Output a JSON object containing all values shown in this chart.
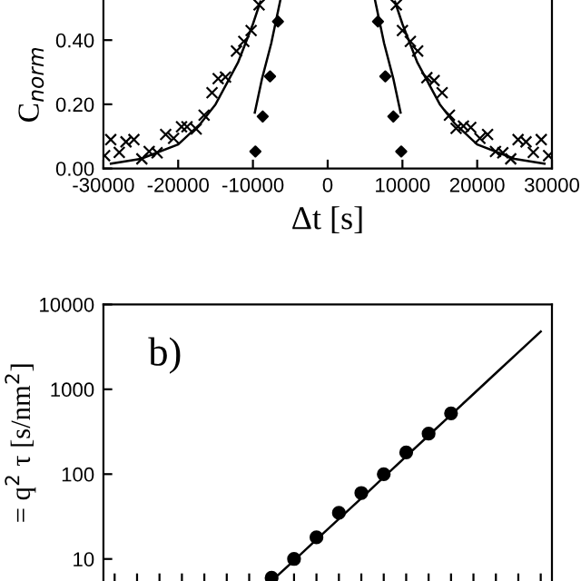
{
  "chart_data": [
    {
      "type": "scatter",
      "xlabel": "Δt [s]",
      "ylabel": "C$_{norm}$",
      "xlim": [
        -30000,
        30000
      ],
      "xticks": [
        -30000,
        -20000,
        -10000,
        0,
        10000,
        20000,
        30000
      ],
      "ylim": [
        0,
        0.525
      ],
      "yticks": [
        {
          "value": 0,
          "label": "0.00"
        },
        {
          "value": 0.2,
          "label": "0.20"
        },
        {
          "value": 0.4,
          "label": "0.40"
        }
      ],
      "grid": false,
      "legend": false,
      "series": [
        {
          "marker": "cross",
          "color": "#000000",
          "x": [
            -29840,
            -29020,
            -27880,
            -26980,
            -25920,
            -24860,
            -23880,
            -22820,
            -21670,
            -20610,
            -19550,
            -18820,
            -17590,
            -16530,
            -15470,
            -14650,
            -13670,
            -12200,
            -11220,
            -10240,
            -9180,
            9180,
            10000,
            11060,
            12040,
            13270,
            14240,
            15310,
            16290,
            17180,
            18160,
            19140,
            20370,
            21390,
            22450,
            23430,
            24490,
            25470,
            26530,
            27510,
            28570,
            29550
          ],
          "values": [
            0.04,
            0.09,
            0.05,
            0.083,
            0.09,
            0.03,
            0.053,
            0.049,
            0.106,
            0.094,
            0.13,
            0.13,
            0.123,
            0.166,
            0.236,
            0.28,
            0.285,
            0.366,
            0.396,
            0.43,
            0.51,
            0.51,
            0.43,
            0.396,
            0.366,
            0.283,
            0.274,
            0.236,
            0.166,
            0.125,
            0.132,
            0.128,
            0.094,
            0.106,
            0.053,
            0.049,
            0.03,
            0.09,
            0.083,
            0.05,
            0.09,
            0.04
          ]
        },
        {
          "marker": "diamond",
          "color": "#000000",
          "x": [
            -9670,
            -8690,
            -7710,
            -6650,
            6730,
            7710,
            8780,
            9840
          ],
          "values": [
            0.053,
            0.162,
            0.287,
            0.458,
            0.458,
            0.287,
            0.162,
            0.053
          ]
        },
        {
          "type": "line",
          "marker": "none",
          "color": "#000000",
          "x": [
            -29000,
            -25000,
            -20000,
            -17000,
            -15000,
            -12000,
            -10000,
            -9000
          ],
          "values": [
            0.015,
            0.03,
            0.075,
            0.14,
            0.2,
            0.33,
            0.45,
            0.52
          ]
        },
        {
          "type": "line",
          "marker": "none",
          "color": "#000000",
          "x": [
            9000,
            10000,
            12000,
            15000,
            17000,
            20000,
            25000,
            29000
          ],
          "values": [
            0.52,
            0.45,
            0.33,
            0.2,
            0.14,
            0.075,
            0.03,
            0.015
          ]
        },
        {
          "type": "line",
          "marker": "none",
          "color": "#000000",
          "x": [
            -9750,
            -8780,
            -7550,
            -6330
          ],
          "values": [
            0.174,
            0.28,
            0.39,
            0.525
          ]
        },
        {
          "type": "line",
          "marker": "none",
          "color": "#000000",
          "x": [
            6330,
            7550,
            8780,
            9750
          ],
          "values": [
            0.525,
            0.39,
            0.28,
            0.174
          ]
        }
      ]
    },
    {
      "type": "scatter",
      "ylabel": "= q$^{2}$ τ [s/nm$^{2}$]",
      "log": "y",
      "ylim": [
        5.5,
        10000
      ],
      "yticks": [
        10,
        100,
        1000,
        10000
      ],
      "tick_labels": "y",
      "grid": false,
      "legend": false,
      "annotations": [
        "b)"
      ],
      "categories": [
        null,
        null,
        null,
        null,
        null,
        null,
        null,
        null,
        null,
        null,
        null,
        null,
        null,
        null,
        null,
        null,
        null,
        null,
        null,
        null
      ],
      "series": [
        {
          "type": "line",
          "marker": "none",
          "color": "#000000",
          "values": [
            null,
            null,
            null,
            null,
            null,
            null,
            null,
            5.5,
            9.6,
            16.9,
            29.7,
            52,
            92,
            162,
            285,
            500,
            880,
            1550,
            2730,
            4800
          ]
        },
        {
          "marker": "circle",
          "color": "#000000",
          "values": [
            null,
            null,
            null,
            null,
            null,
            null,
            null,
            6,
            10,
            18,
            35,
            60,
            100,
            180,
            300,
            520,
            null,
            null,
            null,
            null
          ]
        }
      ]
    }
  ]
}
